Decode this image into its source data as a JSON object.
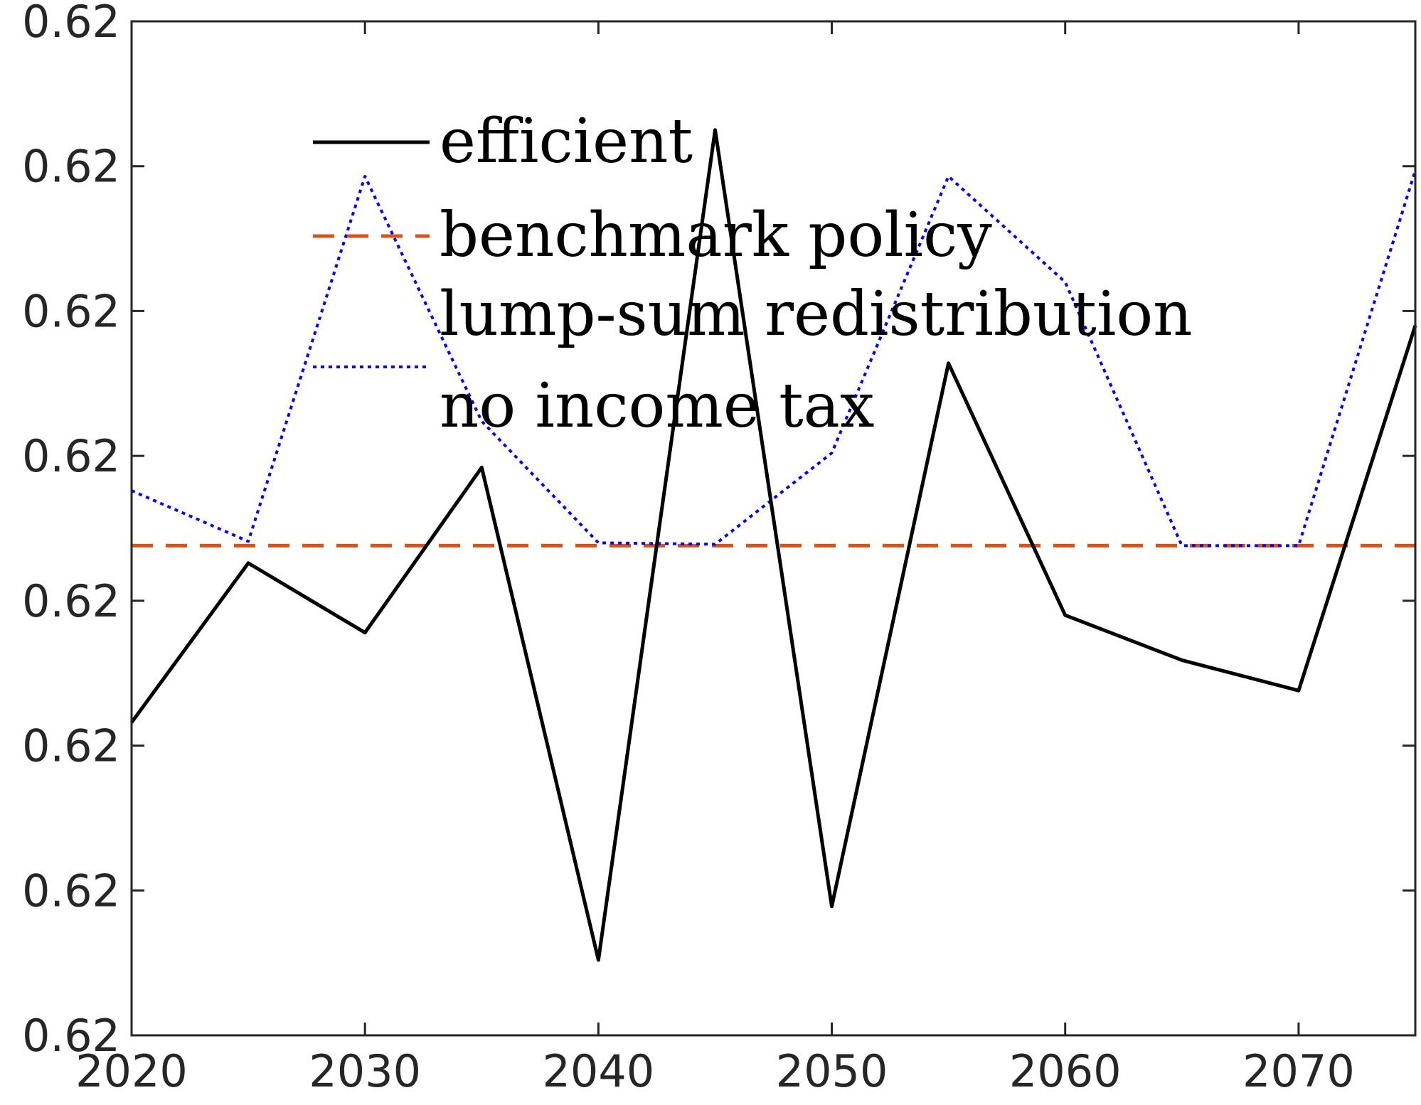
{
  "chart_data": {
    "type": "line",
    "x": [
      2020,
      2025,
      2030,
      2035,
      2040,
      2045,
      2050,
      2055,
      2060,
      2065,
      2070,
      2075
    ],
    "xlim": [
      2020,
      2075
    ],
    "ylim": [
      0,
      7
    ],
    "xticks": [
      "2020",
      "2030",
      "2040",
      "2050",
      "2060",
      "2070"
    ],
    "yticks": [
      "0.62",
      "0.62",
      "0.62",
      "0.62",
      "0.62",
      "0.62",
      "0.62",
      "0.62"
    ],
    "grid": false,
    "legend_position": "top-center",
    "series": [
      {
        "name": "efficient",
        "color": "#000000",
        "style": "solid",
        "values": [
          2.16,
          3.26,
          2.78,
          3.92,
          0.52,
          6.25,
          0.89,
          4.64,
          2.9,
          2.59,
          2.38,
          4.9
        ]
      },
      {
        "name": "benchmark policy",
        "color": "#D95319",
        "style": "dashed",
        "values": [
          3.38,
          3.38,
          3.38,
          3.38,
          3.38,
          3.38,
          3.38,
          3.38,
          3.38,
          3.38,
          3.38,
          3.38
        ]
      },
      {
        "name": "lump-sum redistribution",
        "color": "#FFFFFF",
        "style": "solid",
        "values": [
          null,
          null,
          null,
          null,
          null,
          null,
          null,
          null,
          null,
          null,
          null,
          null
        ]
      },
      {
        "name": "no income tax",
        "color": "#0000FF",
        "style": "dotted",
        "values": [
          3.76,
          3.41,
          5.93,
          4.24,
          3.4,
          3.39,
          4.02,
          5.93,
          5.2,
          3.38,
          3.38,
          5.97
        ]
      }
    ]
  }
}
